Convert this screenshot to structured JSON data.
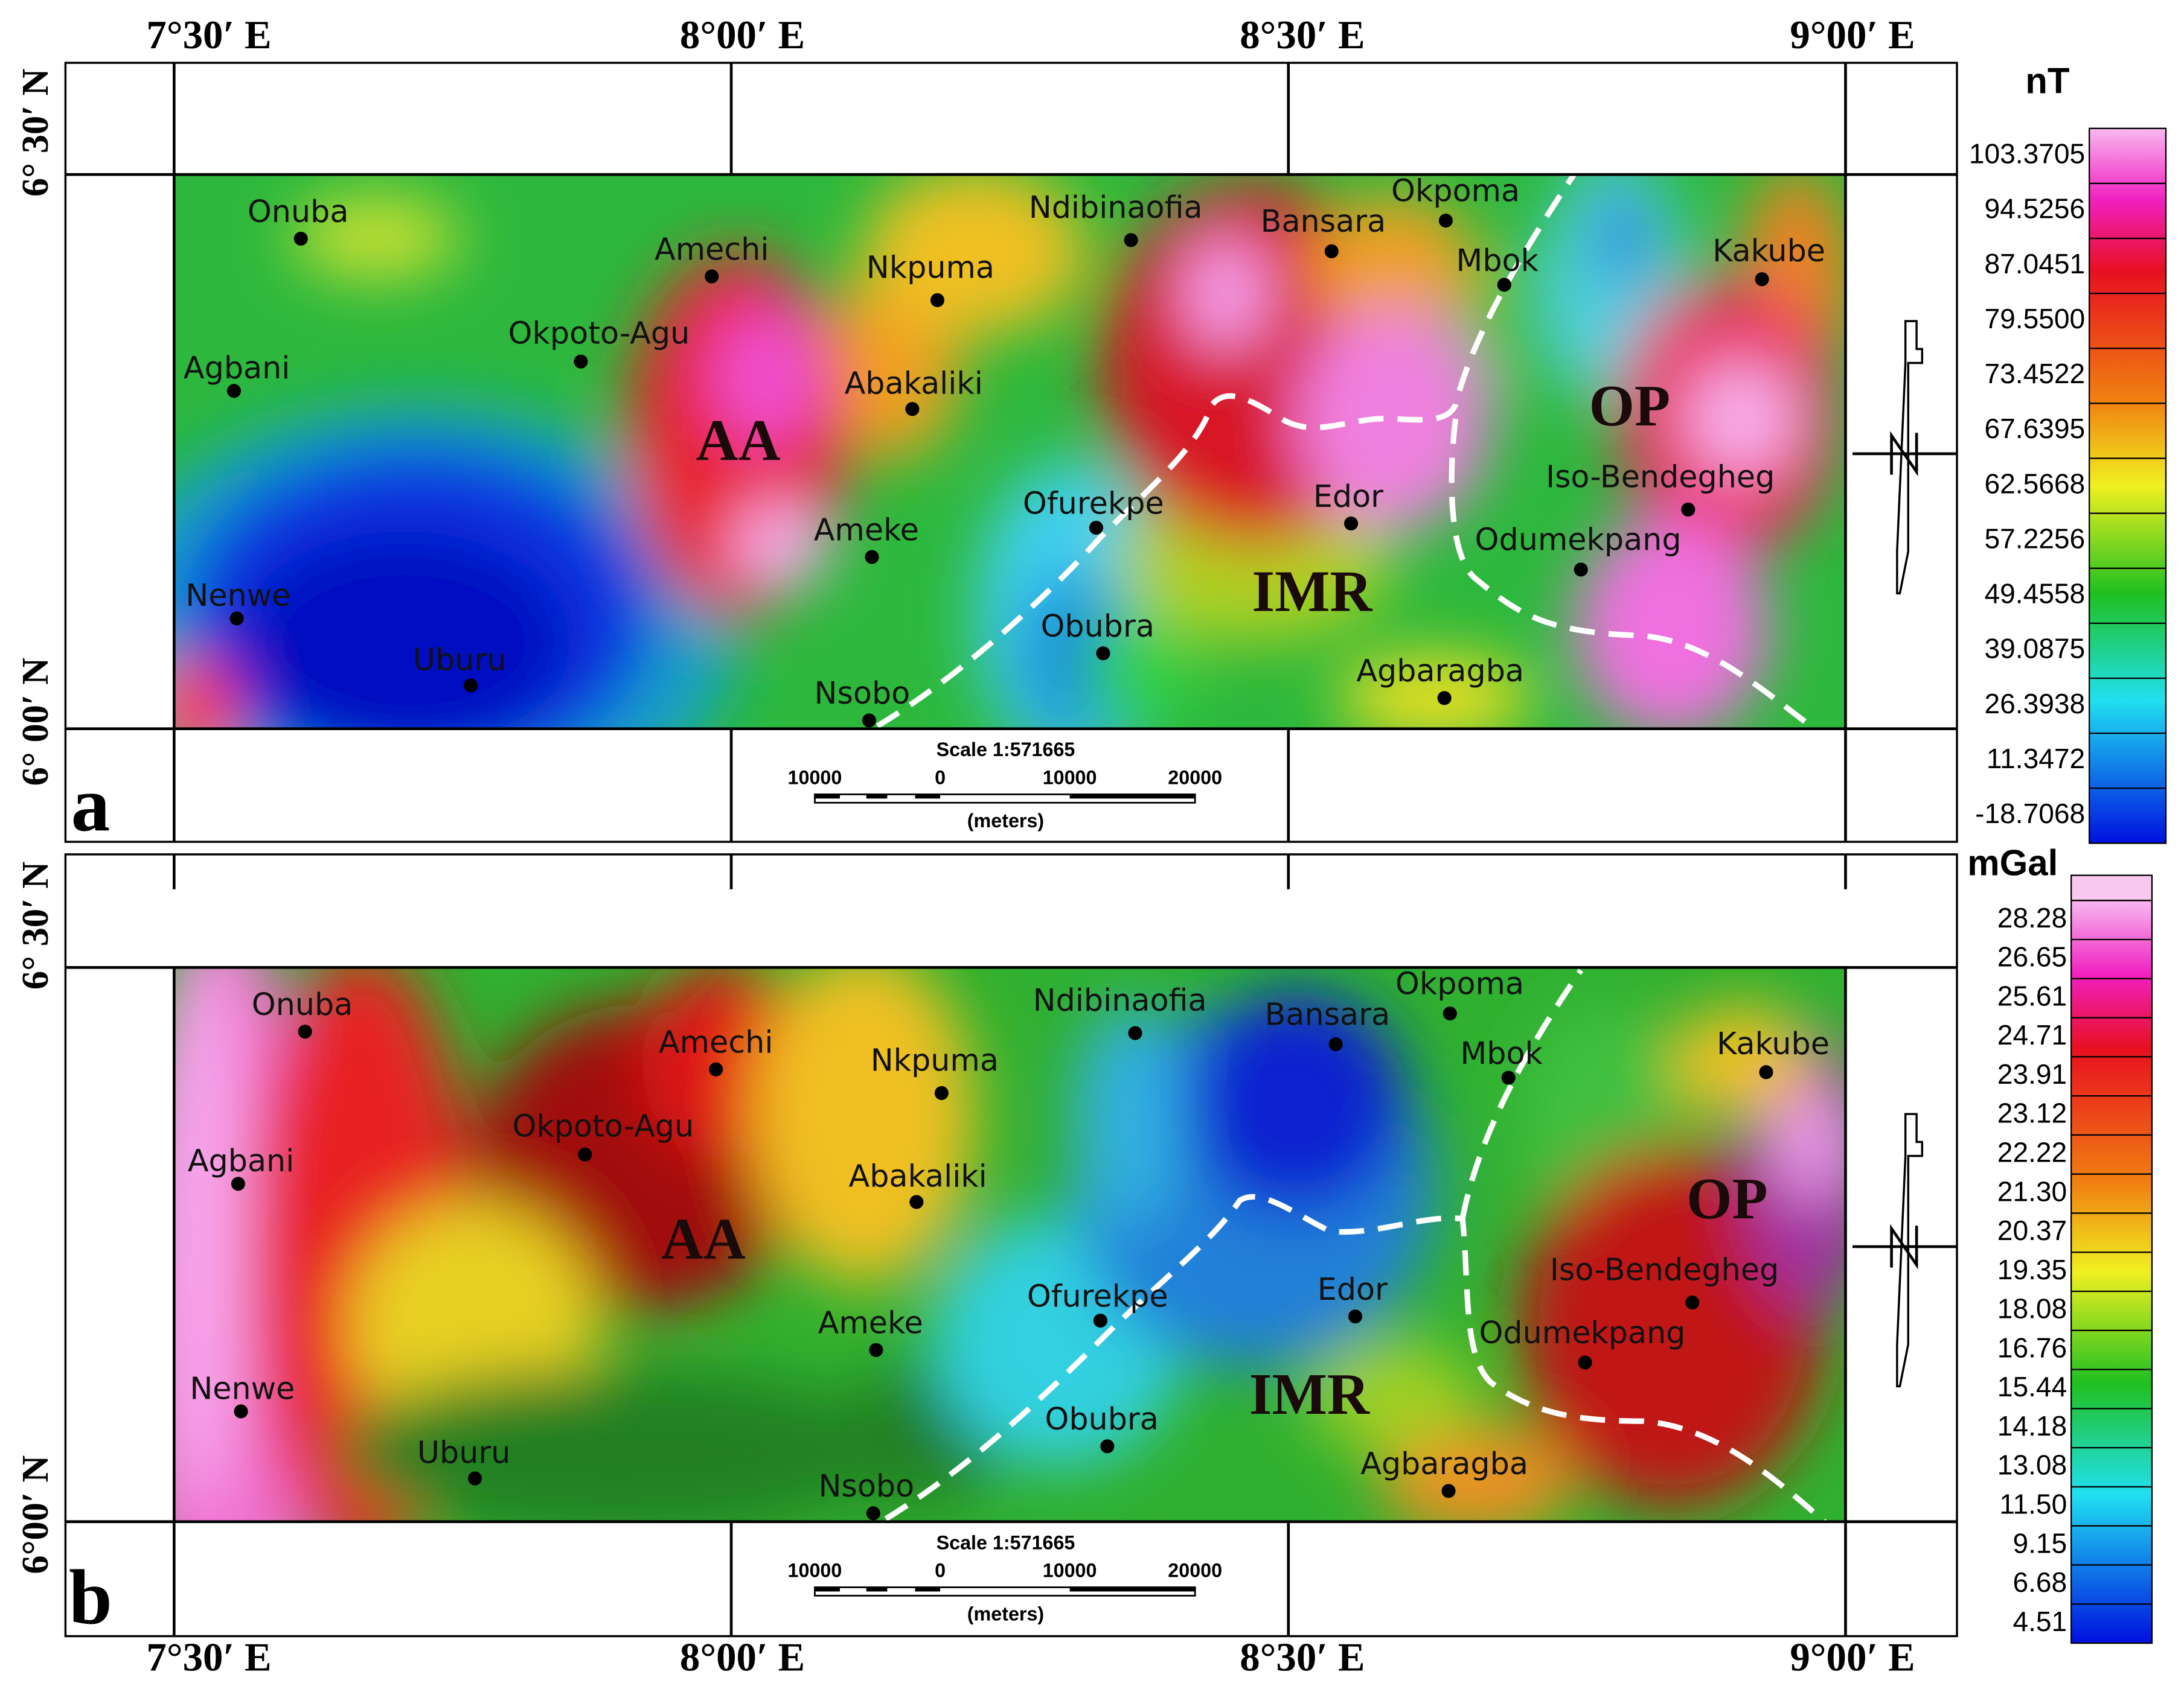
{
  "panels": [
    {
      "letter": "a",
      "lon_labels_top": [
        "7°30′ E",
        "8°00′ E",
        "8°30′ E",
        "9°00′ E"
      ],
      "lat_labels": [
        "6° 30′ N",
        "6° 00′ N"
      ],
      "towns": [
        "Onuba",
        "Amechi",
        "Nkpuma",
        "Ndibinaofia",
        "Bansara",
        "Okpoma",
        "Mbok",
        "Kakube",
        "Agbani",
        "Okpoto-Agu",
        "Abakaliki",
        "Ofurekpe",
        "Edor",
        "Iso-Bendegheg",
        "Ameke",
        "Odumekpang",
        "Nenwe",
        "Obubra",
        "Uburu",
        "Agbaragba",
        "Nsobo"
      ],
      "regions": [
        "AA",
        "OP",
        "IMR"
      ],
      "scale": {
        "title": "Scale 1:571665",
        "ticks": [
          "10000",
          "0",
          "10000",
          "20000"
        ],
        "unit": "(meters)"
      },
      "colorbar": {
        "unit": "nT",
        "labels": [
          "103.3705",
          "94.5256",
          "87.0451",
          "79.5500",
          "73.4522",
          "67.6395",
          "62.5668",
          "57.2256",
          "49.4558",
          "39.0875",
          "26.3938",
          "11.3472",
          "-18.7068"
        ]
      }
    },
    {
      "letter": "b",
      "lon_labels_bottom": [
        "7°30′ E",
        "8°00′ E",
        "8°30′ E",
        "9°00′ E"
      ],
      "lat_labels": [
        "6° 30′ N",
        "6°00′ N"
      ],
      "towns": [
        "Onuba",
        "Amechi",
        "Nkpuma",
        "Ndibinaofia",
        "Bansara",
        "Okpoma",
        "Mbok",
        "Kakube",
        "Agbani",
        "Okpoto-Agu",
        "Abakaliki",
        "Ofurekpe",
        "Edor",
        "Iso-Bendegheg",
        "Ameke",
        "Odumekpang",
        "Nenwe",
        "Obubra",
        "Uburu",
        "Agbaragba",
        "Nsobo"
      ],
      "regions": [
        "AA",
        "OP",
        "IMR"
      ],
      "scale": {
        "title": "Scale 1:571665",
        "ticks": [
          "10000",
          "0",
          "10000",
          "20000"
        ],
        "unit": "(meters)"
      },
      "colorbar": {
        "unit": "mGal",
        "labels": [
          "28.28",
          "26.65",
          "25.61",
          "24.71",
          "23.91",
          "23.12",
          "22.22",
          "21.30",
          "20.37",
          "19.35",
          "18.08",
          "16.76",
          "15.44",
          "14.18",
          "13.08",
          "11.50",
          "9.15",
          "6.68",
          "4.51"
        ]
      }
    }
  ]
}
